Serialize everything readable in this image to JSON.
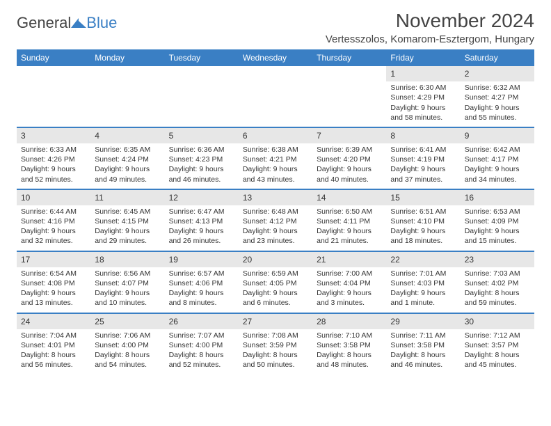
{
  "logo": {
    "text1": "General",
    "text2": "Blue",
    "icon_color": "#3a7fc4"
  },
  "title": "November 2024",
  "location": "Vertesszolos, Komarom-Esztergom, Hungary",
  "colors": {
    "header_bg": "#3a7fc4",
    "stripe": "#e7e7e7",
    "text": "#333333"
  },
  "day_headers": [
    "Sunday",
    "Monday",
    "Tuesday",
    "Wednesday",
    "Thursday",
    "Friday",
    "Saturday"
  ],
  "weeks": [
    [
      {
        "n": "",
        "sr": "",
        "ss": "",
        "dl": ""
      },
      {
        "n": "",
        "sr": "",
        "ss": "",
        "dl": ""
      },
      {
        "n": "",
        "sr": "",
        "ss": "",
        "dl": ""
      },
      {
        "n": "",
        "sr": "",
        "ss": "",
        "dl": ""
      },
      {
        "n": "",
        "sr": "",
        "ss": "",
        "dl": ""
      },
      {
        "n": "1",
        "sr": "Sunrise: 6:30 AM",
        "ss": "Sunset: 4:29 PM",
        "dl": "Daylight: 9 hours and 58 minutes."
      },
      {
        "n": "2",
        "sr": "Sunrise: 6:32 AM",
        "ss": "Sunset: 4:27 PM",
        "dl": "Daylight: 9 hours and 55 minutes."
      }
    ],
    [
      {
        "n": "3",
        "sr": "Sunrise: 6:33 AM",
        "ss": "Sunset: 4:26 PM",
        "dl": "Daylight: 9 hours and 52 minutes."
      },
      {
        "n": "4",
        "sr": "Sunrise: 6:35 AM",
        "ss": "Sunset: 4:24 PM",
        "dl": "Daylight: 9 hours and 49 minutes."
      },
      {
        "n": "5",
        "sr": "Sunrise: 6:36 AM",
        "ss": "Sunset: 4:23 PM",
        "dl": "Daylight: 9 hours and 46 minutes."
      },
      {
        "n": "6",
        "sr": "Sunrise: 6:38 AM",
        "ss": "Sunset: 4:21 PM",
        "dl": "Daylight: 9 hours and 43 minutes."
      },
      {
        "n": "7",
        "sr": "Sunrise: 6:39 AM",
        "ss": "Sunset: 4:20 PM",
        "dl": "Daylight: 9 hours and 40 minutes."
      },
      {
        "n": "8",
        "sr": "Sunrise: 6:41 AM",
        "ss": "Sunset: 4:19 PM",
        "dl": "Daylight: 9 hours and 37 minutes."
      },
      {
        "n": "9",
        "sr": "Sunrise: 6:42 AM",
        "ss": "Sunset: 4:17 PM",
        "dl": "Daylight: 9 hours and 34 minutes."
      }
    ],
    [
      {
        "n": "10",
        "sr": "Sunrise: 6:44 AM",
        "ss": "Sunset: 4:16 PM",
        "dl": "Daylight: 9 hours and 32 minutes."
      },
      {
        "n": "11",
        "sr": "Sunrise: 6:45 AM",
        "ss": "Sunset: 4:15 PM",
        "dl": "Daylight: 9 hours and 29 minutes."
      },
      {
        "n": "12",
        "sr": "Sunrise: 6:47 AM",
        "ss": "Sunset: 4:13 PM",
        "dl": "Daylight: 9 hours and 26 minutes."
      },
      {
        "n": "13",
        "sr": "Sunrise: 6:48 AM",
        "ss": "Sunset: 4:12 PM",
        "dl": "Daylight: 9 hours and 23 minutes."
      },
      {
        "n": "14",
        "sr": "Sunrise: 6:50 AM",
        "ss": "Sunset: 4:11 PM",
        "dl": "Daylight: 9 hours and 21 minutes."
      },
      {
        "n": "15",
        "sr": "Sunrise: 6:51 AM",
        "ss": "Sunset: 4:10 PM",
        "dl": "Daylight: 9 hours and 18 minutes."
      },
      {
        "n": "16",
        "sr": "Sunrise: 6:53 AM",
        "ss": "Sunset: 4:09 PM",
        "dl": "Daylight: 9 hours and 15 minutes."
      }
    ],
    [
      {
        "n": "17",
        "sr": "Sunrise: 6:54 AM",
        "ss": "Sunset: 4:08 PM",
        "dl": "Daylight: 9 hours and 13 minutes."
      },
      {
        "n": "18",
        "sr": "Sunrise: 6:56 AM",
        "ss": "Sunset: 4:07 PM",
        "dl": "Daylight: 9 hours and 10 minutes."
      },
      {
        "n": "19",
        "sr": "Sunrise: 6:57 AM",
        "ss": "Sunset: 4:06 PM",
        "dl": "Daylight: 9 hours and 8 minutes."
      },
      {
        "n": "20",
        "sr": "Sunrise: 6:59 AM",
        "ss": "Sunset: 4:05 PM",
        "dl": "Daylight: 9 hours and 6 minutes."
      },
      {
        "n": "21",
        "sr": "Sunrise: 7:00 AM",
        "ss": "Sunset: 4:04 PM",
        "dl": "Daylight: 9 hours and 3 minutes."
      },
      {
        "n": "22",
        "sr": "Sunrise: 7:01 AM",
        "ss": "Sunset: 4:03 PM",
        "dl": "Daylight: 9 hours and 1 minute."
      },
      {
        "n": "23",
        "sr": "Sunrise: 7:03 AM",
        "ss": "Sunset: 4:02 PM",
        "dl": "Daylight: 8 hours and 59 minutes."
      }
    ],
    [
      {
        "n": "24",
        "sr": "Sunrise: 7:04 AM",
        "ss": "Sunset: 4:01 PM",
        "dl": "Daylight: 8 hours and 56 minutes."
      },
      {
        "n": "25",
        "sr": "Sunrise: 7:06 AM",
        "ss": "Sunset: 4:00 PM",
        "dl": "Daylight: 8 hours and 54 minutes."
      },
      {
        "n": "26",
        "sr": "Sunrise: 7:07 AM",
        "ss": "Sunset: 4:00 PM",
        "dl": "Daylight: 8 hours and 52 minutes."
      },
      {
        "n": "27",
        "sr": "Sunrise: 7:08 AM",
        "ss": "Sunset: 3:59 PM",
        "dl": "Daylight: 8 hours and 50 minutes."
      },
      {
        "n": "28",
        "sr": "Sunrise: 7:10 AM",
        "ss": "Sunset: 3:58 PM",
        "dl": "Daylight: 8 hours and 48 minutes."
      },
      {
        "n": "29",
        "sr": "Sunrise: 7:11 AM",
        "ss": "Sunset: 3:58 PM",
        "dl": "Daylight: 8 hours and 46 minutes."
      },
      {
        "n": "30",
        "sr": "Sunrise: 7:12 AM",
        "ss": "Sunset: 3:57 PM",
        "dl": "Daylight: 8 hours and 45 minutes."
      }
    ]
  ]
}
